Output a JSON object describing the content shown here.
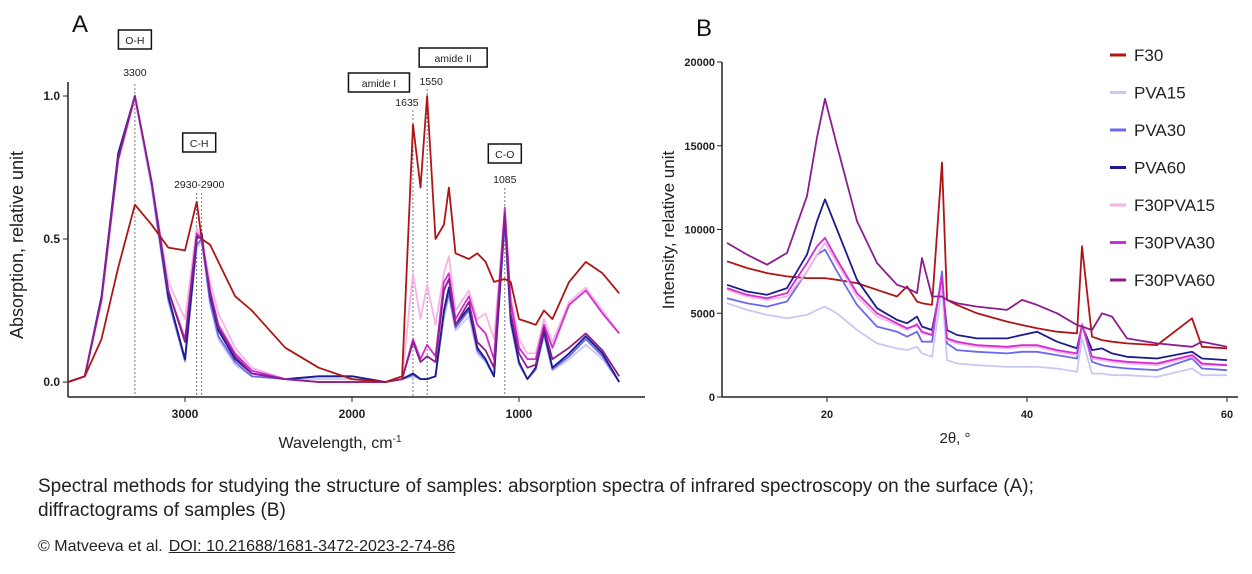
{
  "chart_data": [
    {
      "panel_label": "A",
      "type": "line",
      "xlabel": "Wavelength, cm",
      "xlabel_sup": "-1",
      "ylabel": "Absorption, relative unit",
      "xlim": [
        3700,
        400
      ],
      "ylim": [
        0,
        1.1
      ],
      "x_reversed": true,
      "xticks": [
        3000,
        2000,
        1000
      ],
      "yticks": [
        "0.0",
        "0.5",
        "1.0"
      ],
      "grid": false,
      "annotations": [
        {
          "box": "O-H",
          "value": "3300",
          "x": [
            3300
          ]
        },
        {
          "box": "C-H",
          "value": "2930-2900",
          "x": [
            2930,
            2900
          ]
        },
        {
          "box": "amide I",
          "value": "1635",
          "x": [
            1635
          ]
        },
        {
          "box": "amide II",
          "value": "1550",
          "x": [
            1550
          ]
        },
        {
          "box": "C-O",
          "value": "1085",
          "x": [
            1085
          ]
        }
      ],
      "x": [
        3700,
        3600,
        3500,
        3400,
        3300,
        3200,
        3100,
        3000,
        2930,
        2900,
        2850,
        2800,
        2700,
        2600,
        2400,
        2200,
        2000,
        1800,
        1700,
        1635,
        1590,
        1550,
        1500,
        1450,
        1420,
        1380,
        1300,
        1250,
        1200,
        1150,
        1085,
        1050,
        1000,
        950,
        900,
        850,
        800,
        700,
        600,
        500,
        400
      ],
      "series": [
        {
          "color": "#c8c8f5",
          "values": [
            0,
            0.02,
            0.28,
            0.78,
            0.99,
            0.68,
            0.28,
            0.07,
            0.47,
            0.49,
            0.27,
            0.15,
            0.06,
            0.02,
            0.01,
            0.01,
            0.01,
            0,
            0.01,
            0.02,
            0.01,
            0.01,
            0.02,
            0.22,
            0.3,
            0.18,
            0.23,
            0.1,
            0.07,
            0.02,
            0.55,
            0.2,
            0.06,
            0.01,
            0.04,
            0.16,
            0.04,
            0.08,
            0.13,
            0.08,
            0
          ]
        },
        {
          "color": "#6a6af0",
          "values": [
            0,
            0.02,
            0.29,
            0.79,
            1.0,
            0.69,
            0.29,
            0.075,
            0.48,
            0.5,
            0.28,
            0.16,
            0.07,
            0.02,
            0.01,
            0.02,
            0.02,
            0,
            0.01,
            0.025,
            0.01,
            0.01,
            0.02,
            0.24,
            0.31,
            0.19,
            0.25,
            0.11,
            0.075,
            0.02,
            0.56,
            0.21,
            0.065,
            0.01,
            0.045,
            0.17,
            0.045,
            0.09,
            0.15,
            0.09,
            0
          ]
        },
        {
          "color": "#1c1c8c",
          "values": [
            0,
            0.02,
            0.3,
            0.8,
            1.0,
            0.7,
            0.3,
            0.08,
            0.5,
            0.52,
            0.3,
            0.18,
            0.08,
            0.03,
            0.01,
            0.02,
            0.02,
            0,
            0.01,
            0.03,
            0.01,
            0.01,
            0.02,
            0.25,
            0.33,
            0.2,
            0.26,
            0.12,
            0.08,
            0.02,
            0.58,
            0.22,
            0.07,
            0.01,
            0.05,
            0.18,
            0.05,
            0.1,
            0.16,
            0.1,
            0
          ]
        },
        {
          "color": "#f5b4e6",
          "values": [
            0,
            0.02,
            0.28,
            0.77,
            0.99,
            0.7,
            0.35,
            0.22,
            0.54,
            0.5,
            0.35,
            0.24,
            0.12,
            0.05,
            0.01,
            0,
            0,
            0,
            0.01,
            0.38,
            0.22,
            0.34,
            0.2,
            0.38,
            0.44,
            0.25,
            0.32,
            0.22,
            0.24,
            0.15,
            0.6,
            0.3,
            0.15,
            0.1,
            0.1,
            0.22,
            0.14,
            0.28,
            0.33,
            0.25,
            0.17
          ]
        },
        {
          "color": "#d22dd2",
          "values": [
            0,
            0.02,
            0.29,
            0.78,
            1.0,
            0.7,
            0.32,
            0.15,
            0.52,
            0.5,
            0.32,
            0.2,
            0.1,
            0.04,
            0.01,
            0,
            0,
            0,
            0.01,
            0.15,
            0.08,
            0.13,
            0.09,
            0.35,
            0.38,
            0.22,
            0.3,
            0.2,
            0.17,
            0.08,
            0.61,
            0.28,
            0.12,
            0.08,
            0.08,
            0.2,
            0.12,
            0.27,
            0.32,
            0.24,
            0.17
          ]
        },
        {
          "color": "#8c1e8c",
          "values": [
            0,
            0.02,
            0.29,
            0.78,
            1.0,
            0.7,
            0.32,
            0.14,
            0.51,
            0.5,
            0.31,
            0.19,
            0.09,
            0.03,
            0.01,
            0,
            0,
            0,
            0.01,
            0.14,
            0.07,
            0.09,
            0.07,
            0.32,
            0.36,
            0.2,
            0.28,
            0.14,
            0.11,
            0.05,
            0.59,
            0.24,
            0.1,
            0.05,
            0.06,
            0.19,
            0.08,
            0.12,
            0.17,
            0.11,
            0.02
          ]
        },
        {
          "color": "#b01515",
          "values": [
            0,
            0.02,
            0.15,
            0.4,
            0.62,
            0.55,
            0.47,
            0.46,
            0.63,
            0.5,
            0.48,
            0.42,
            0.3,
            0.25,
            0.12,
            0.05,
            0.01,
            0,
            0.02,
            0.9,
            0.68,
            1.0,
            0.5,
            0.55,
            0.68,
            0.45,
            0.43,
            0.45,
            0.42,
            0.35,
            0.36,
            0.35,
            0.22,
            0.21,
            0.2,
            0.25,
            0.22,
            0.35,
            0.42,
            0.38,
            0.31
          ]
        }
      ]
    },
    {
      "panel_label": "B",
      "type": "line",
      "xlabel": "2θ, °",
      "ylabel": "Intensity, relative unit",
      "xlim": [
        9,
        61
      ],
      "ylim": [
        0,
        20000
      ],
      "xticks": [
        20,
        40,
        60
      ],
      "yticks": [
        0,
        5000,
        10000,
        15000,
        20000
      ],
      "grid": false,
      "legend_position": "top-right",
      "x": [
        10,
        12,
        14,
        16,
        18,
        19,
        19.8,
        21,
        23,
        25,
        27,
        28,
        29,
        29.5,
        30.5,
        31.5,
        32,
        33,
        35,
        38,
        39.5,
        41,
        43,
        45,
        45.5,
        46.5,
        47.5,
        48.5,
        50,
        53,
        56.5,
        57.5,
        60
      ],
      "series": [
        {
          "name": "F30",
          "color": "#b01515",
          "values": [
            8100,
            7700,
            7400,
            7200,
            7100,
            7100,
            7100,
            7000,
            6800,
            6400,
            6000,
            6600,
            5700,
            5600,
            5500,
            14000,
            5800,
            5500,
            5000,
            4500,
            4300,
            4100,
            3900,
            3800,
            9000,
            3600,
            3400,
            3300,
            3200,
            3100,
            4700,
            3000,
            2900
          ]
        },
        {
          "name": "PVA15",
          "color": "#c8c8f5",
          "values": [
            5600,
            5200,
            4900,
            4700,
            4900,
            5200,
            5400,
            5000,
            4000,
            3200,
            2900,
            2800,
            3000,
            2600,
            2400,
            6500,
            2200,
            2000,
            1900,
            1800,
            1800,
            1800,
            1700,
            1500,
            3500,
            1400,
            1400,
            1300,
            1300,
            1200,
            1700,
            1300,
            1300
          ]
        },
        {
          "name": "PVA30",
          "color": "#6a6af0",
          "values": [
            5900,
            5600,
            5400,
            5700,
            7500,
            8500,
            8800,
            7500,
            5500,
            4200,
            3900,
            3600,
            3900,
            3300,
            3300,
            7500,
            3200,
            2800,
            2700,
            2600,
            2700,
            2700,
            2500,
            2300,
            4400,
            2100,
            1900,
            1800,
            1700,
            1600,
            2300,
            1700,
            1600
          ]
        },
        {
          "name": "PVA60",
          "color": "#1c1c8c",
          "values": [
            6700,
            6300,
            6100,
            6500,
            8500,
            10500,
            11800,
            10000,
            7000,
            5300,
            4600,
            4400,
            4800,
            4200,
            4000,
            7000,
            4000,
            3700,
            3500,
            3500,
            3700,
            3900,
            3300,
            2900,
            4300,
            2800,
            2900,
            2600,
            2400,
            2300,
            2700,
            2300,
            2200
          ]
        },
        {
          "name": "F30PVA15",
          "color": "#f5b4e6",
          "values": [
            6400,
            6000,
            5800,
            6000,
            7500,
            8500,
            9200,
            8000,
            6000,
            4800,
            4300,
            4000,
            4400,
            3800,
            3700,
            7000,
            3400,
            3200,
            3000,
            2900,
            3000,
            3000,
            2700,
            2500,
            4400,
            2300,
            2200,
            2100,
            2000,
            1900,
            2400,
            1900,
            1900
          ]
        },
        {
          "name": "F30PVA30",
          "color": "#d22dd2",
          "values": [
            6500,
            6100,
            5900,
            6200,
            8000,
            9000,
            9500,
            8200,
            6200,
            5000,
            4400,
            4100,
            4300,
            3900,
            3700,
            7200,
            3500,
            3300,
            3100,
            3000,
            3100,
            3100,
            2800,
            2600,
            4300,
            2400,
            2300,
            2200,
            2100,
            2000,
            2500,
            2000,
            1900
          ]
        },
        {
          "name": "F30PVA60",
          "color": "#8c1e8c",
          "values": [
            9200,
            8500,
            7900,
            8600,
            12000,
            15500,
            17800,
            15000,
            10500,
            8000,
            6700,
            6500,
            6200,
            8300,
            6000,
            6000,
            5800,
            5600,
            5400,
            5200,
            5800,
            5500,
            5000,
            4300,
            4200,
            4000,
            5000,
            4800,
            3500,
            3200,
            3000,
            3300,
            3000
          ]
        }
      ]
    }
  ],
  "caption": {
    "line1": "Spectral methods for studying the structure of samples: absorption spectra of infrared spectroscopy on the surface (A);",
    "line2": "diffractograms of samples (B)",
    "credit": "© Matveeva et al.",
    "doi": "DOI: 10.21688/1681-3472-2023-2-74-86"
  }
}
